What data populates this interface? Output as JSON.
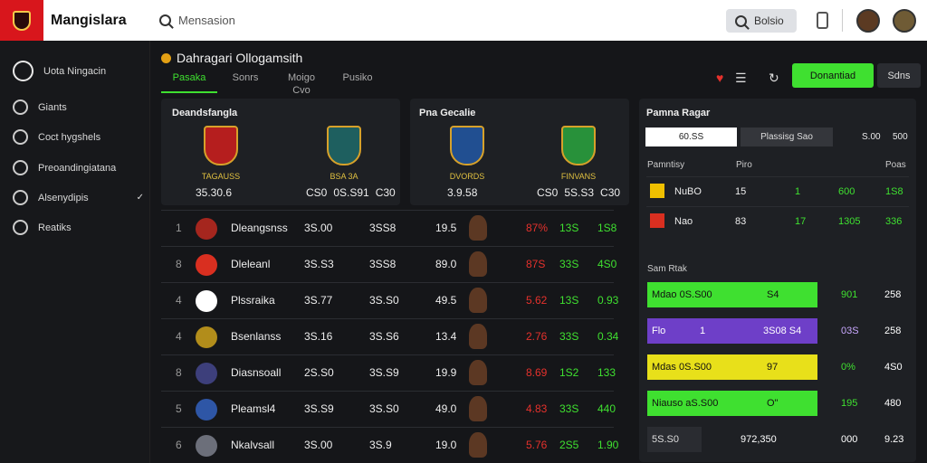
{
  "app": {
    "name": "Mangislara",
    "search_placeholder": "Mensasion",
    "top_button": "Bolsio"
  },
  "sidebar": {
    "header": "Uota Ningacin",
    "items": [
      "Giants",
      "Coct hygshels",
      "Preoandingiatana",
      "Alsenydipis",
      "Reatiks"
    ]
  },
  "main": {
    "title": "Dahragari Ollogamsith",
    "tabs": [
      "Pasaka",
      "Sonrs",
      "Moigo Cvo",
      "Pusiko"
    ],
    "green_button": "Donantiad",
    "dark_button": "Sdns"
  },
  "match_panel": {
    "title": "Deandsfangla",
    "left_team": "TAGAUSS",
    "right_team": "BSA 3A",
    "left_scores": [
      "35.30.6"
    ],
    "right_scores": [
      "CS0",
      "0S.S91",
      "C30"
    ]
  },
  "center_panel": {
    "title": "Pna Gecalie",
    "left_team": "DVORDS",
    "right_team": "FINVANS",
    "center_score": "3.9.58",
    "left_score": "CS0",
    "score": "5S.S3",
    "right_score": "C30"
  },
  "table": {
    "rows": [
      {
        "rank": "1",
        "name": "Dleangsnss",
        "v1": "3S.00",
        "v2": "3SS8",
        "v3": "19.5",
        "p1": "87%",
        "p2": "13S",
        "p3": "1S8"
      },
      {
        "rank": "8",
        "name": "Dleleanl",
        "v1": "3S.S3",
        "v2": "3SS8",
        "v3": "89.0",
        "p1": "87S",
        "p2": "33S",
        "p3": "4S0"
      },
      {
        "rank": "4",
        "name": "Plssraika",
        "v1": "3S.77",
        "v2": "3S.S0",
        "v3": "49.5",
        "p1": "5.62",
        "p2": "13S",
        "p3": "0.93"
      },
      {
        "rank": "4",
        "name": "Bsenlanss",
        "v1": "3S.16",
        "v2": "3S.S6",
        "v3": "13.4",
        "p1": "2.76",
        "p2": "33S",
        "p3": "0.34"
      },
      {
        "rank": "8",
        "name": "Diasnsoall",
        "v1": "2S.S0",
        "v2": "3S.S9",
        "v3": "19.9",
        "p1": "8.69",
        "p2": "1S2",
        "p3": "133"
      },
      {
        "rank": "5",
        "name": "Pleamsl4",
        "v1": "3S.S9",
        "v2": "3S.S0",
        "v3": "49.0",
        "p1": "4.83",
        "p2": "33S",
        "p3": "440"
      },
      {
        "rank": "6",
        "name": "Nkalvsall",
        "v1": "3S.00",
        "v2": "3S.9",
        "v3": "19.0",
        "p1": "5.76",
        "p2": "2S5",
        "p3": "1.90"
      }
    ]
  },
  "right_panel": {
    "title": "Pamna Ragar",
    "seg1": "60.SS",
    "seg2": "Plassisg Sao",
    "a": "S.00",
    "b": "500",
    "head": [
      "Pamntisy",
      "Piro",
      "Poas"
    ],
    "rows": [
      [
        "NuBO",
        "15",
        "1",
        "600",
        "1S8"
      ],
      [
        "Nao",
        "83",
        "17",
        "1305",
        "336"
      ]
    ],
    "stats_title": "Sam Rtak",
    "stats": [
      [
        "Mdao 0S.S00",
        "S4",
        "901",
        "258"
      ],
      [
        "Flo",
        "1",
        "3S08 S4",
        "03S",
        "258"
      ],
      [
        "Mdas 0S.S00",
        "97",
        "0%",
        "4S0"
      ],
      [
        "Niauso aS.S00",
        "O\"",
        "195",
        "480"
      ],
      [
        "5S.S0",
        "972,350",
        "000",
        "9.23"
      ]
    ]
  }
}
